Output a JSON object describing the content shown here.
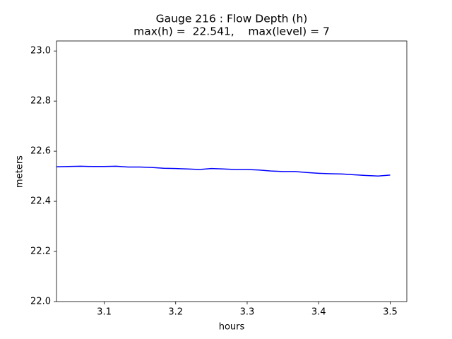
{
  "chart_data": {
    "type": "line",
    "title": "Gauge 216 : Flow Depth (h)",
    "subtitle": "max(h) =  22.541,    max(level) = 7",
    "x_label": "hours",
    "y_label": "meters",
    "x": [
      3.0333,
      3.05,
      3.0667,
      3.0833,
      3.1,
      3.1167,
      3.1333,
      3.15,
      3.1667,
      3.1833,
      3.2,
      3.2167,
      3.2333,
      3.25,
      3.2667,
      3.2833,
      3.3,
      3.3167,
      3.3333,
      3.35,
      3.3667,
      3.3833,
      3.4,
      3.4167,
      3.4333,
      3.45,
      3.4667,
      3.4833,
      3.5
    ],
    "series": [
      {
        "name": "h",
        "color": "#0000ff",
        "values": [
          22.538,
          22.539,
          22.54,
          22.539,
          22.539,
          22.54,
          22.537,
          22.537,
          22.535,
          22.532,
          22.531,
          22.529,
          22.527,
          22.531,
          22.529,
          22.527,
          22.527,
          22.525,
          22.521,
          22.519,
          22.519,
          22.515,
          22.512,
          22.51,
          22.509,
          22.506,
          22.503,
          22.501,
          22.505
        ]
      }
    ],
    "xlim": [
      3.0333,
      3.5233
    ],
    "xticks": [
      3.1,
      3.2,
      3.3,
      3.4,
      3.5
    ],
    "ylim": [
      22.0,
      23.04
    ],
    "yticks": [
      {
        "value": 22,
        "label": "22.0"
      },
      22.2,
      22.4,
      22.6,
      22.8,
      {
        "value": 23,
        "label": "23.0"
      }
    ]
  }
}
